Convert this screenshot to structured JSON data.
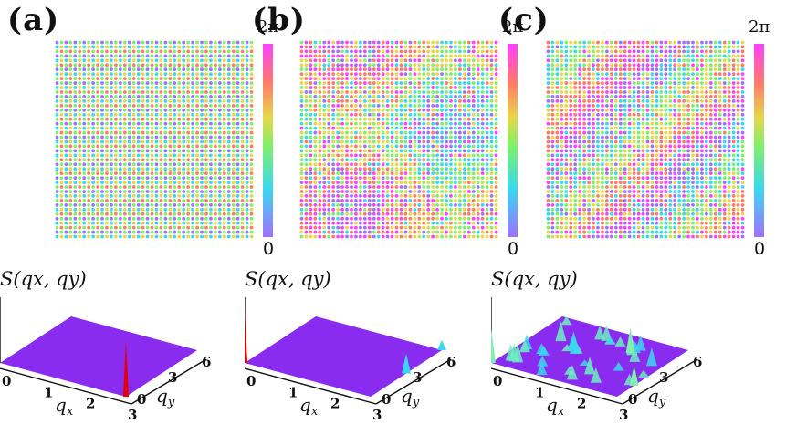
{
  "figure": {
    "colorbar": {
      "max_label": "2π",
      "min_label": "0",
      "colors": [
        "#a070ff",
        "#3ad8f0",
        "#7ff06a",
        "#e8d64a",
        "#ff7a6a",
        "#ff40ff"
      ]
    },
    "panels": [
      {
        "label": "(a)",
        "structure_factor_label": "S(qx, qy)",
        "pattern": "ordered",
        "qx_ticks": [
          "0",
          "1",
          "2",
          "3"
        ],
        "qy_ticks": [
          "0",
          "3",
          "6"
        ],
        "peak_color": "#e00000"
      },
      {
        "label": "(b)",
        "structure_factor_label": "S(qx, qy)",
        "pattern": "domains",
        "qx_ticks": [
          "0",
          "1",
          "2",
          "3"
        ],
        "qy_ticks": [
          "0",
          "3",
          "6"
        ],
        "peak_color": "#e00000"
      },
      {
        "label": "(c)",
        "structure_factor_label": "S(qx, qy)",
        "pattern": "disordered",
        "qx_ticks": [
          "0",
          "1",
          "2",
          "3"
        ],
        "qy_ticks": [
          "0",
          "3",
          "6"
        ],
        "peak_color": "#e00000"
      }
    ],
    "axis_labels": {
      "qx": "q",
      "qx_sub": "x",
      "qy": "q",
      "qy_sub": "y"
    },
    "surface_color": "#8a2cf0"
  },
  "chart_data": {
    "type": "heatmap",
    "title": "",
    "colorbar_range": [
      0,
      6.2832
    ],
    "colorbar_tick_labels": [
      "0",
      "2π"
    ],
    "panels": [
      {
        "label": "(a)",
        "xlabel": "qx",
        "ylabel": "qy",
        "xlim": [
          0,
          3.14
        ],
        "ylim": [
          0,
          6.28
        ],
        "peaks": [
          {
            "qx": 3.14,
            "qy": 0,
            "height": 1.0
          }
        ]
      },
      {
        "label": "(b)",
        "xlabel": "qx",
        "ylabel": "qy",
        "xlim": [
          0,
          3.14
        ],
        "ylim": [
          0,
          6.28
        ],
        "peaks": [
          {
            "qx": 0,
            "qy": 0,
            "height": 1.0
          },
          {
            "qx": 3.14,
            "qy": 3.14,
            "height": 0.35
          },
          {
            "qx": 3.14,
            "qy": 6.28,
            "height": 0.18
          }
        ]
      },
      {
        "label": "(c)",
        "xlabel": "qx",
        "ylabel": "qy",
        "xlim": [
          0,
          3.14
        ],
        "ylim": [
          0,
          6.28
        ],
        "peaks": [
          {
            "qx": 0,
            "qy": 0,
            "height": 0.6
          },
          {
            "qx": 2.2,
            "qy": 4.5,
            "height": 0.45
          },
          {
            "qx": 3.14,
            "qy": 1.5,
            "height": 0.35
          }
        ]
      }
    ]
  }
}
